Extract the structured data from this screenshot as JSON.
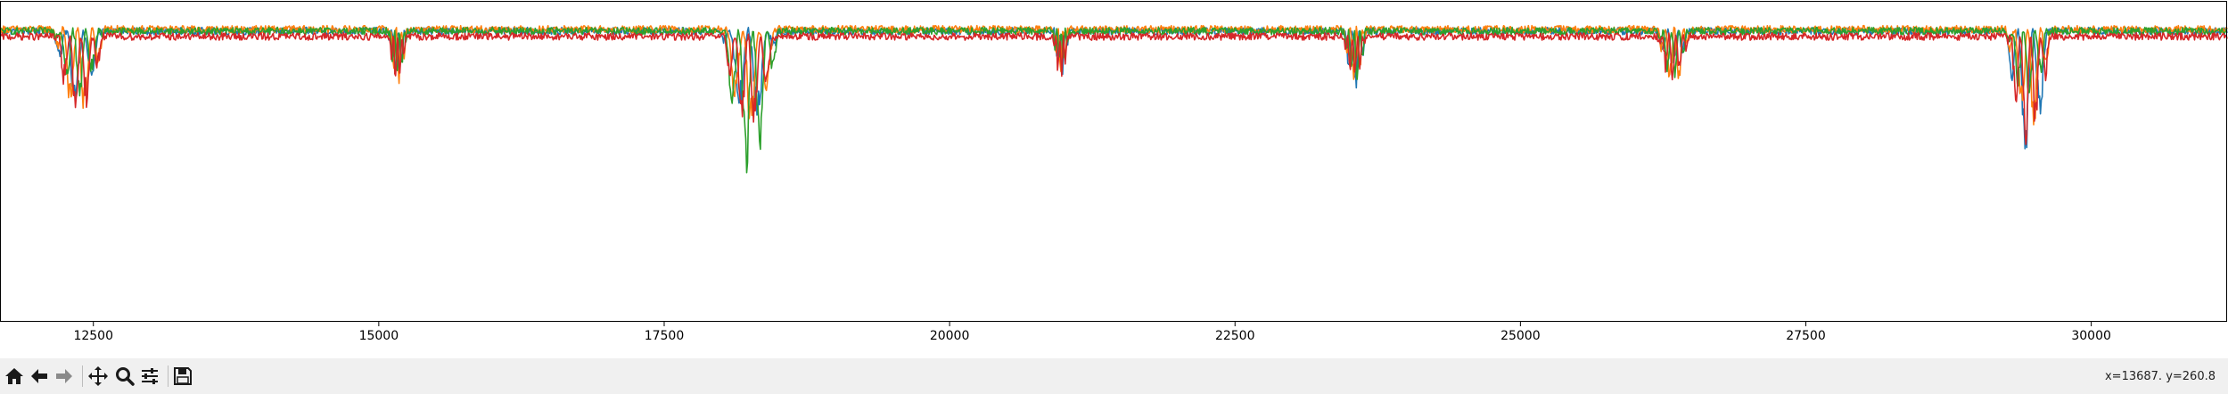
{
  "toolbar": {
    "buttons": [
      {
        "name": "home-button",
        "icon": "home-icon",
        "tooltip": "Reset original view"
      },
      {
        "name": "back-button",
        "icon": "arrow-left-icon",
        "tooltip": "Back to previous view"
      },
      {
        "name": "forward-button",
        "icon": "arrow-right-icon",
        "tooltip": "Forward to next view"
      },
      {
        "name": "pan-button",
        "icon": "move-icon",
        "tooltip": "Pan axes"
      },
      {
        "name": "zoom-button",
        "icon": "magnifier-icon",
        "tooltip": "Zoom to rectangle"
      },
      {
        "name": "subplots-button",
        "icon": "sliders-icon",
        "tooltip": "Configure subplots"
      },
      {
        "name": "save-button",
        "icon": "floppy-disk-icon",
        "tooltip": "Save the figure"
      }
    ],
    "coordinates": "x=13687. y=260.8"
  },
  "chart_data": {
    "type": "line",
    "title": "",
    "xlabel": "",
    "ylabel": "",
    "xlim": [
      11690,
      31190
    ],
    "ylim": [
      140,
      315
    ],
    "x_ticks": [
      12500,
      15000,
      17500,
      20000,
      22500,
      25000,
      27500,
      30000
    ],
    "x_tick_labels": [
      "12500",
      "15000",
      "17500",
      "20000",
      "22500",
      "25000",
      "27500",
      "30000"
    ],
    "y_tick_labels": [],
    "grid": false,
    "legend": "none",
    "baselines": [
      299,
      300,
      299,
      296
    ],
    "series": [
      {
        "name": "series-1",
        "color": "#1f77b4"
      },
      {
        "name": "series-2",
        "color": "#ff7f0e"
      },
      {
        "name": "series-3",
        "color": "#2ca02c"
      },
      {
        "name": "series-4",
        "color": "#d62728"
      }
    ],
    "dip_events": [
      {
        "start": 12150,
        "end": 12600,
        "min": [
          255,
          248,
          262,
          250
        ]
      },
      {
        "start": 15080,
        "end": 15250,
        "min": [
          270,
          266,
          268,
          264
        ]
      },
      {
        "start": 18000,
        "end": 18500,
        "min": [
          245,
          239,
          213,
          242
        ]
      },
      {
        "start": 20900,
        "end": 21050,
        "min": [
          274,
          271,
          276,
          272
        ]
      },
      {
        "start": 23450,
        "end": 23650,
        "min": [
          266,
          268,
          264,
          269
        ]
      },
      {
        "start": 26200,
        "end": 26480,
        "min": [
          275,
          265,
          271,
          270
        ]
      },
      {
        "start": 29250,
        "end": 29650,
        "min": [
          223,
          240,
          257,
          232
        ]
      }
    ]
  }
}
